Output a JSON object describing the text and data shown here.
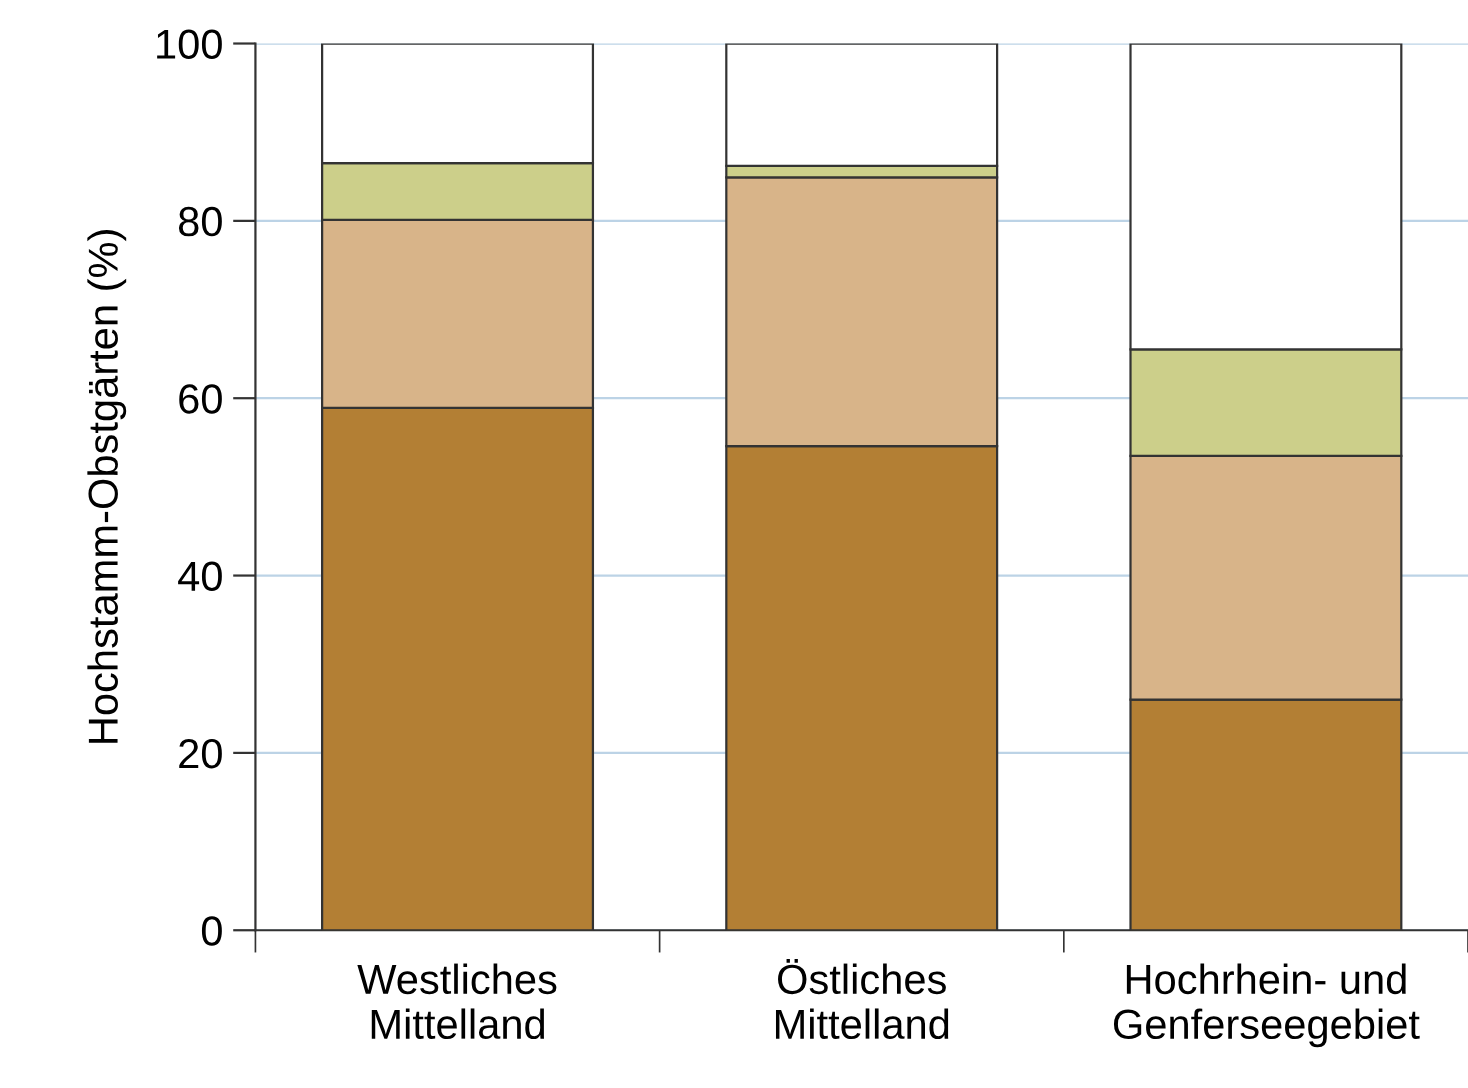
{
  "chart_data": {
    "type": "bar",
    "stacked": true,
    "ylabel": "Hochstamm-Obstgärten (%)",
    "categories": [
      "Westliches\nMittelland",
      "Östliches\nMittelland",
      "Hochrhein- und\nGenferseegebiet"
    ],
    "series": [
      {
        "color": "#b37f34",
        "values": [
          58.9,
          54.6,
          26.0
        ]
      },
      {
        "color": "#d8b489",
        "values": [
          21.2,
          30.3,
          27.5
        ]
      },
      {
        "color": "#cccf8a",
        "values": [
          6.4,
          1.3,
          12.0
        ]
      },
      {
        "color": "#ffffff",
        "values": [
          13.5,
          13.8,
          34.5
        ]
      }
    ],
    "ylim": [
      0,
      100
    ],
    "yticks": [
      0,
      20,
      40,
      60,
      80,
      100
    ],
    "grid": "y"
  }
}
